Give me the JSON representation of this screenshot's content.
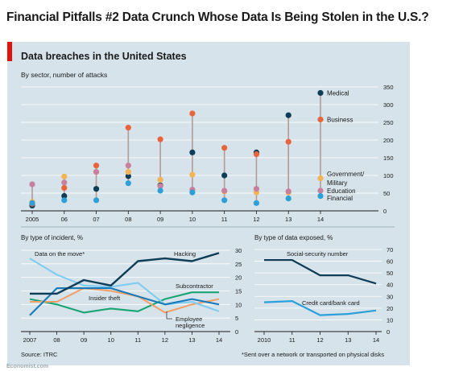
{
  "page_title": "Financial Pitfalls #2 Data Crunch Whose Data Is Being Stolen in the U.S.?",
  "panel": {
    "title": "Data breaches in the United States",
    "subtitle": "By sector, number of attacks",
    "source": "Source: ITRC",
    "footnote": "*Sent over a network or transported on physical disks",
    "watermark": "Economist.com"
  },
  "colors": {
    "medical": "#0f3d56",
    "business": "#e8643c",
    "government": "#f3b453",
    "education": "#c97f9e",
    "financial": "#2d9fd9",
    "stem": "#b59a95",
    "hacking": "#0f3d56",
    "data_on_move": "#7fcbf2",
    "subcontractor": "#18a574",
    "insider_theft": "#1a7ab8",
    "employee_negligence": "#f2a06a",
    "ssn": "#0f3d56",
    "credit_card": "#2d9fd9"
  },
  "chart_data": [
    {
      "type": "scatter",
      "subtitle": "By sector, number of attacks",
      "x": [
        "2005",
        "06",
        "07",
        "08",
        "09",
        "10",
        "11",
        "12",
        "13",
        "14"
      ],
      "ylim": [
        0,
        350
      ],
      "yticks": [
        0,
        50,
        100,
        150,
        200,
        250,
        300,
        350
      ],
      "y_axis_side": "right",
      "series": [
        {
          "name": "Medical",
          "key": "medical",
          "values": [
            15,
            42,
            62,
            98,
            72,
            165,
            100,
            165,
            270,
            333
          ]
        },
        {
          "name": "Business",
          "key": "business",
          "values": [
            20,
            65,
            128,
            235,
            202,
            275,
            178,
            160,
            195,
            258
          ]
        },
        {
          "name": "Government/ Military",
          "key": "government",
          "values": [
            25,
            97,
            110,
            110,
            88,
            102,
            55,
            52,
            52,
            92
          ]
        },
        {
          "name": "Education",
          "key": "education",
          "values": [
            75,
            80,
            110,
            128,
            70,
            60,
            57,
            62,
            55,
            57
          ]
        },
        {
          "name": "Financial",
          "key": "financial",
          "values": [
            22,
            30,
            30,
            78,
            57,
            52,
            30,
            22,
            35,
            42
          ]
        }
      ],
      "legend": [
        "Medical",
        "Business",
        "Government/",
        "Military",
        "Education",
        "Financial"
      ]
    },
    {
      "type": "line",
      "subtitle": "By type of incident, %",
      "x": [
        "2007",
        "08",
        "09",
        "10",
        "11",
        "12",
        "13",
        "14"
      ],
      "ylim": [
        0,
        30
      ],
      "yticks": [
        0,
        5,
        10,
        15,
        20,
        25,
        30
      ],
      "y_axis_side": "right",
      "series": [
        {
          "name": "Hacking",
          "key": "hacking",
          "values": [
            14,
            14,
            19,
            17,
            26,
            27,
            26,
            29
          ]
        },
        {
          "name": "Data on the move*",
          "key": "data_on_move",
          "values": [
            27,
            21,
            17,
            16.5,
            18,
            10,
            11,
            7.5
          ]
        },
        {
          "name": "Subcontractor",
          "key": "subcontractor",
          "values": [
            12,
            10,
            7,
            8.5,
            7.5,
            12,
            14.5,
            14.5
          ]
        },
        {
          "name": "Insider theft",
          "key": "insider_theft",
          "values": [
            6,
            16,
            16,
            16,
            13,
            10,
            12,
            10
          ]
        },
        {
          "name": "Employee negligence",
          "key": "employee_negligence",
          "values": [
            11,
            11,
            16,
            15,
            13,
            7,
            10,
            12
          ]
        }
      ]
    },
    {
      "type": "line",
      "subtitle": "By type of data exposed, %",
      "x": [
        "2010",
        "11",
        "12",
        "13",
        "14"
      ],
      "ylim": [
        0,
        70
      ],
      "yticks": [
        0,
        10,
        20,
        30,
        40,
        50,
        60,
        70
      ],
      "y_axis_side": "right",
      "series": [
        {
          "name": "Social-security number",
          "key": "ssn",
          "values": [
            61,
            61,
            48,
            48,
            41
          ]
        },
        {
          "name": "Credit card/bank card",
          "key": "credit_card",
          "values": [
            25,
            26,
            14,
            15,
            18
          ]
        }
      ]
    }
  ]
}
